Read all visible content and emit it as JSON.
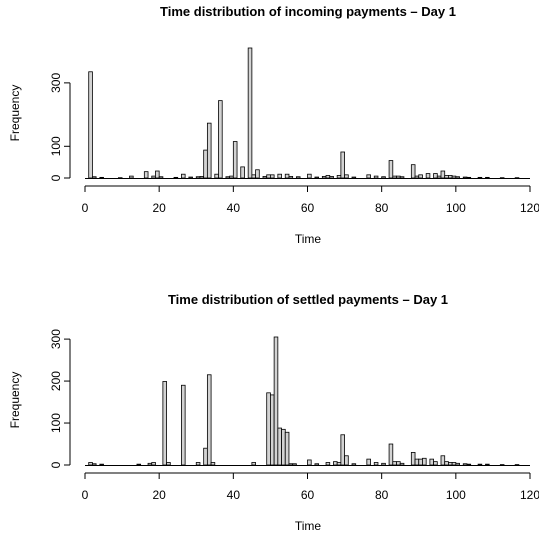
{
  "chart_data": [
    {
      "type": "bar",
      "title": "Time distribution of incoming payments – Day 1",
      "xlabel": "Time",
      "ylabel": "Frequency",
      "xlim": [
        0,
        120
      ],
      "ylim": [
        0,
        400
      ],
      "x_ticks": [
        "0",
        "20",
        "40",
        "60",
        "80",
        "100",
        "120"
      ],
      "y_ticks": [
        "0",
        "100",
        "300"
      ],
      "y_tick_values": [
        0,
        100,
        300
      ],
      "bin_width": 1,
      "bins": [
        {
          "x": 1,
          "y": 335
        },
        {
          "x": 2,
          "y": 4
        },
        {
          "x": 4,
          "y": 2
        },
        {
          "x": 9,
          "y": 1
        },
        {
          "x": 12,
          "y": 6
        },
        {
          "x": 16,
          "y": 20
        },
        {
          "x": 18,
          "y": 6
        },
        {
          "x": 19,
          "y": 22
        },
        {
          "x": 20,
          "y": 4
        },
        {
          "x": 24,
          "y": 2
        },
        {
          "x": 26,
          "y": 12
        },
        {
          "x": 28,
          "y": 3
        },
        {
          "x": 30,
          "y": 4
        },
        {
          "x": 31,
          "y": 5
        },
        {
          "x": 32,
          "y": 88
        },
        {
          "x": 33,
          "y": 173
        },
        {
          "x": 35,
          "y": 12
        },
        {
          "x": 36,
          "y": 244
        },
        {
          "x": 38,
          "y": 4
        },
        {
          "x": 39,
          "y": 6
        },
        {
          "x": 40,
          "y": 115
        },
        {
          "x": 42,
          "y": 35
        },
        {
          "x": 44,
          "y": 410
        },
        {
          "x": 45,
          "y": 10
        },
        {
          "x": 46,
          "y": 26
        },
        {
          "x": 48,
          "y": 5
        },
        {
          "x": 49,
          "y": 10
        },
        {
          "x": 50,
          "y": 10
        },
        {
          "x": 52,
          "y": 12
        },
        {
          "x": 54,
          "y": 12
        },
        {
          "x": 55,
          "y": 5
        },
        {
          "x": 57,
          "y": 4
        },
        {
          "x": 60,
          "y": 12
        },
        {
          "x": 62,
          "y": 3
        },
        {
          "x": 64,
          "y": 5
        },
        {
          "x": 65,
          "y": 8
        },
        {
          "x": 66,
          "y": 5
        },
        {
          "x": 68,
          "y": 8
        },
        {
          "x": 69,
          "y": 82
        },
        {
          "x": 70,
          "y": 10
        },
        {
          "x": 72,
          "y": 3
        },
        {
          "x": 76,
          "y": 10
        },
        {
          "x": 78,
          "y": 6
        },
        {
          "x": 80,
          "y": 4
        },
        {
          "x": 82,
          "y": 55
        },
        {
          "x": 83,
          "y": 6
        },
        {
          "x": 84,
          "y": 6
        },
        {
          "x": 85,
          "y": 4
        },
        {
          "x": 88,
          "y": 42
        },
        {
          "x": 89,
          "y": 6
        },
        {
          "x": 90,
          "y": 10
        },
        {
          "x": 92,
          "y": 14
        },
        {
          "x": 94,
          "y": 14
        },
        {
          "x": 95,
          "y": 6
        },
        {
          "x": 96,
          "y": 22
        },
        {
          "x": 97,
          "y": 8
        },
        {
          "x": 98,
          "y": 8
        },
        {
          "x": 99,
          "y": 6
        },
        {
          "x": 100,
          "y": 4
        },
        {
          "x": 102,
          "y": 3
        },
        {
          "x": 103,
          "y": 2
        },
        {
          "x": 106,
          "y": 2
        },
        {
          "x": 108,
          "y": 2
        },
        {
          "x": 112,
          "y": 1
        },
        {
          "x": 116,
          "y": 1
        }
      ]
    },
    {
      "type": "bar",
      "title": "Time distribution of settled payments – Day 1",
      "xlabel": "Time",
      "ylabel": "Frequency",
      "xlim": [
        0,
        120
      ],
      "ylim": [
        0,
        310
      ],
      "x_ticks": [
        "0",
        "20",
        "40",
        "60",
        "80",
        "100",
        "120"
      ],
      "y_ticks": [
        "0",
        "100",
        "200",
        "300"
      ],
      "y_tick_values": [
        0,
        100,
        200,
        300
      ],
      "bin_width": 1,
      "bins": [
        {
          "x": 1,
          "y": 6
        },
        {
          "x": 2,
          "y": 3
        },
        {
          "x": 4,
          "y": 2
        },
        {
          "x": 14,
          "y": 2
        },
        {
          "x": 17,
          "y": 4
        },
        {
          "x": 18,
          "y": 6
        },
        {
          "x": 21,
          "y": 199
        },
        {
          "x": 22,
          "y": 6
        },
        {
          "x": 26,
          "y": 190
        },
        {
          "x": 30,
          "y": 6
        },
        {
          "x": 32,
          "y": 40
        },
        {
          "x": 33,
          "y": 215
        },
        {
          "x": 34,
          "y": 6
        },
        {
          "x": 45,
          "y": 6
        },
        {
          "x": 49,
          "y": 172
        },
        {
          "x": 50,
          "y": 167
        },
        {
          "x": 51,
          "y": 305
        },
        {
          "x": 52,
          "y": 88
        },
        {
          "x": 53,
          "y": 85
        },
        {
          "x": 54,
          "y": 78
        },
        {
          "x": 55,
          "y": 3
        },
        {
          "x": 56,
          "y": 3
        },
        {
          "x": 60,
          "y": 12
        },
        {
          "x": 62,
          "y": 3
        },
        {
          "x": 65,
          "y": 6
        },
        {
          "x": 67,
          "y": 8
        },
        {
          "x": 68,
          "y": 6
        },
        {
          "x": 69,
          "y": 72
        },
        {
          "x": 70,
          "y": 22
        },
        {
          "x": 72,
          "y": 3
        },
        {
          "x": 76,
          "y": 14
        },
        {
          "x": 78,
          "y": 6
        },
        {
          "x": 80,
          "y": 4
        },
        {
          "x": 82,
          "y": 50
        },
        {
          "x": 83,
          "y": 8
        },
        {
          "x": 84,
          "y": 8
        },
        {
          "x": 85,
          "y": 4
        },
        {
          "x": 88,
          "y": 30
        },
        {
          "x": 89,
          "y": 14
        },
        {
          "x": 90,
          "y": 14
        },
        {
          "x": 91,
          "y": 16
        },
        {
          "x": 93,
          "y": 14
        },
        {
          "x": 94,
          "y": 8
        },
        {
          "x": 96,
          "y": 22
        },
        {
          "x": 97,
          "y": 8
        },
        {
          "x": 98,
          "y": 6
        },
        {
          "x": 99,
          "y": 6
        },
        {
          "x": 100,
          "y": 4
        },
        {
          "x": 102,
          "y": 3
        },
        {
          "x": 103,
          "y": 2
        },
        {
          "x": 106,
          "y": 2
        },
        {
          "x": 108,
          "y": 2
        },
        {
          "x": 112,
          "y": 1
        },
        {
          "x": 116,
          "y": 1
        }
      ]
    }
  ]
}
